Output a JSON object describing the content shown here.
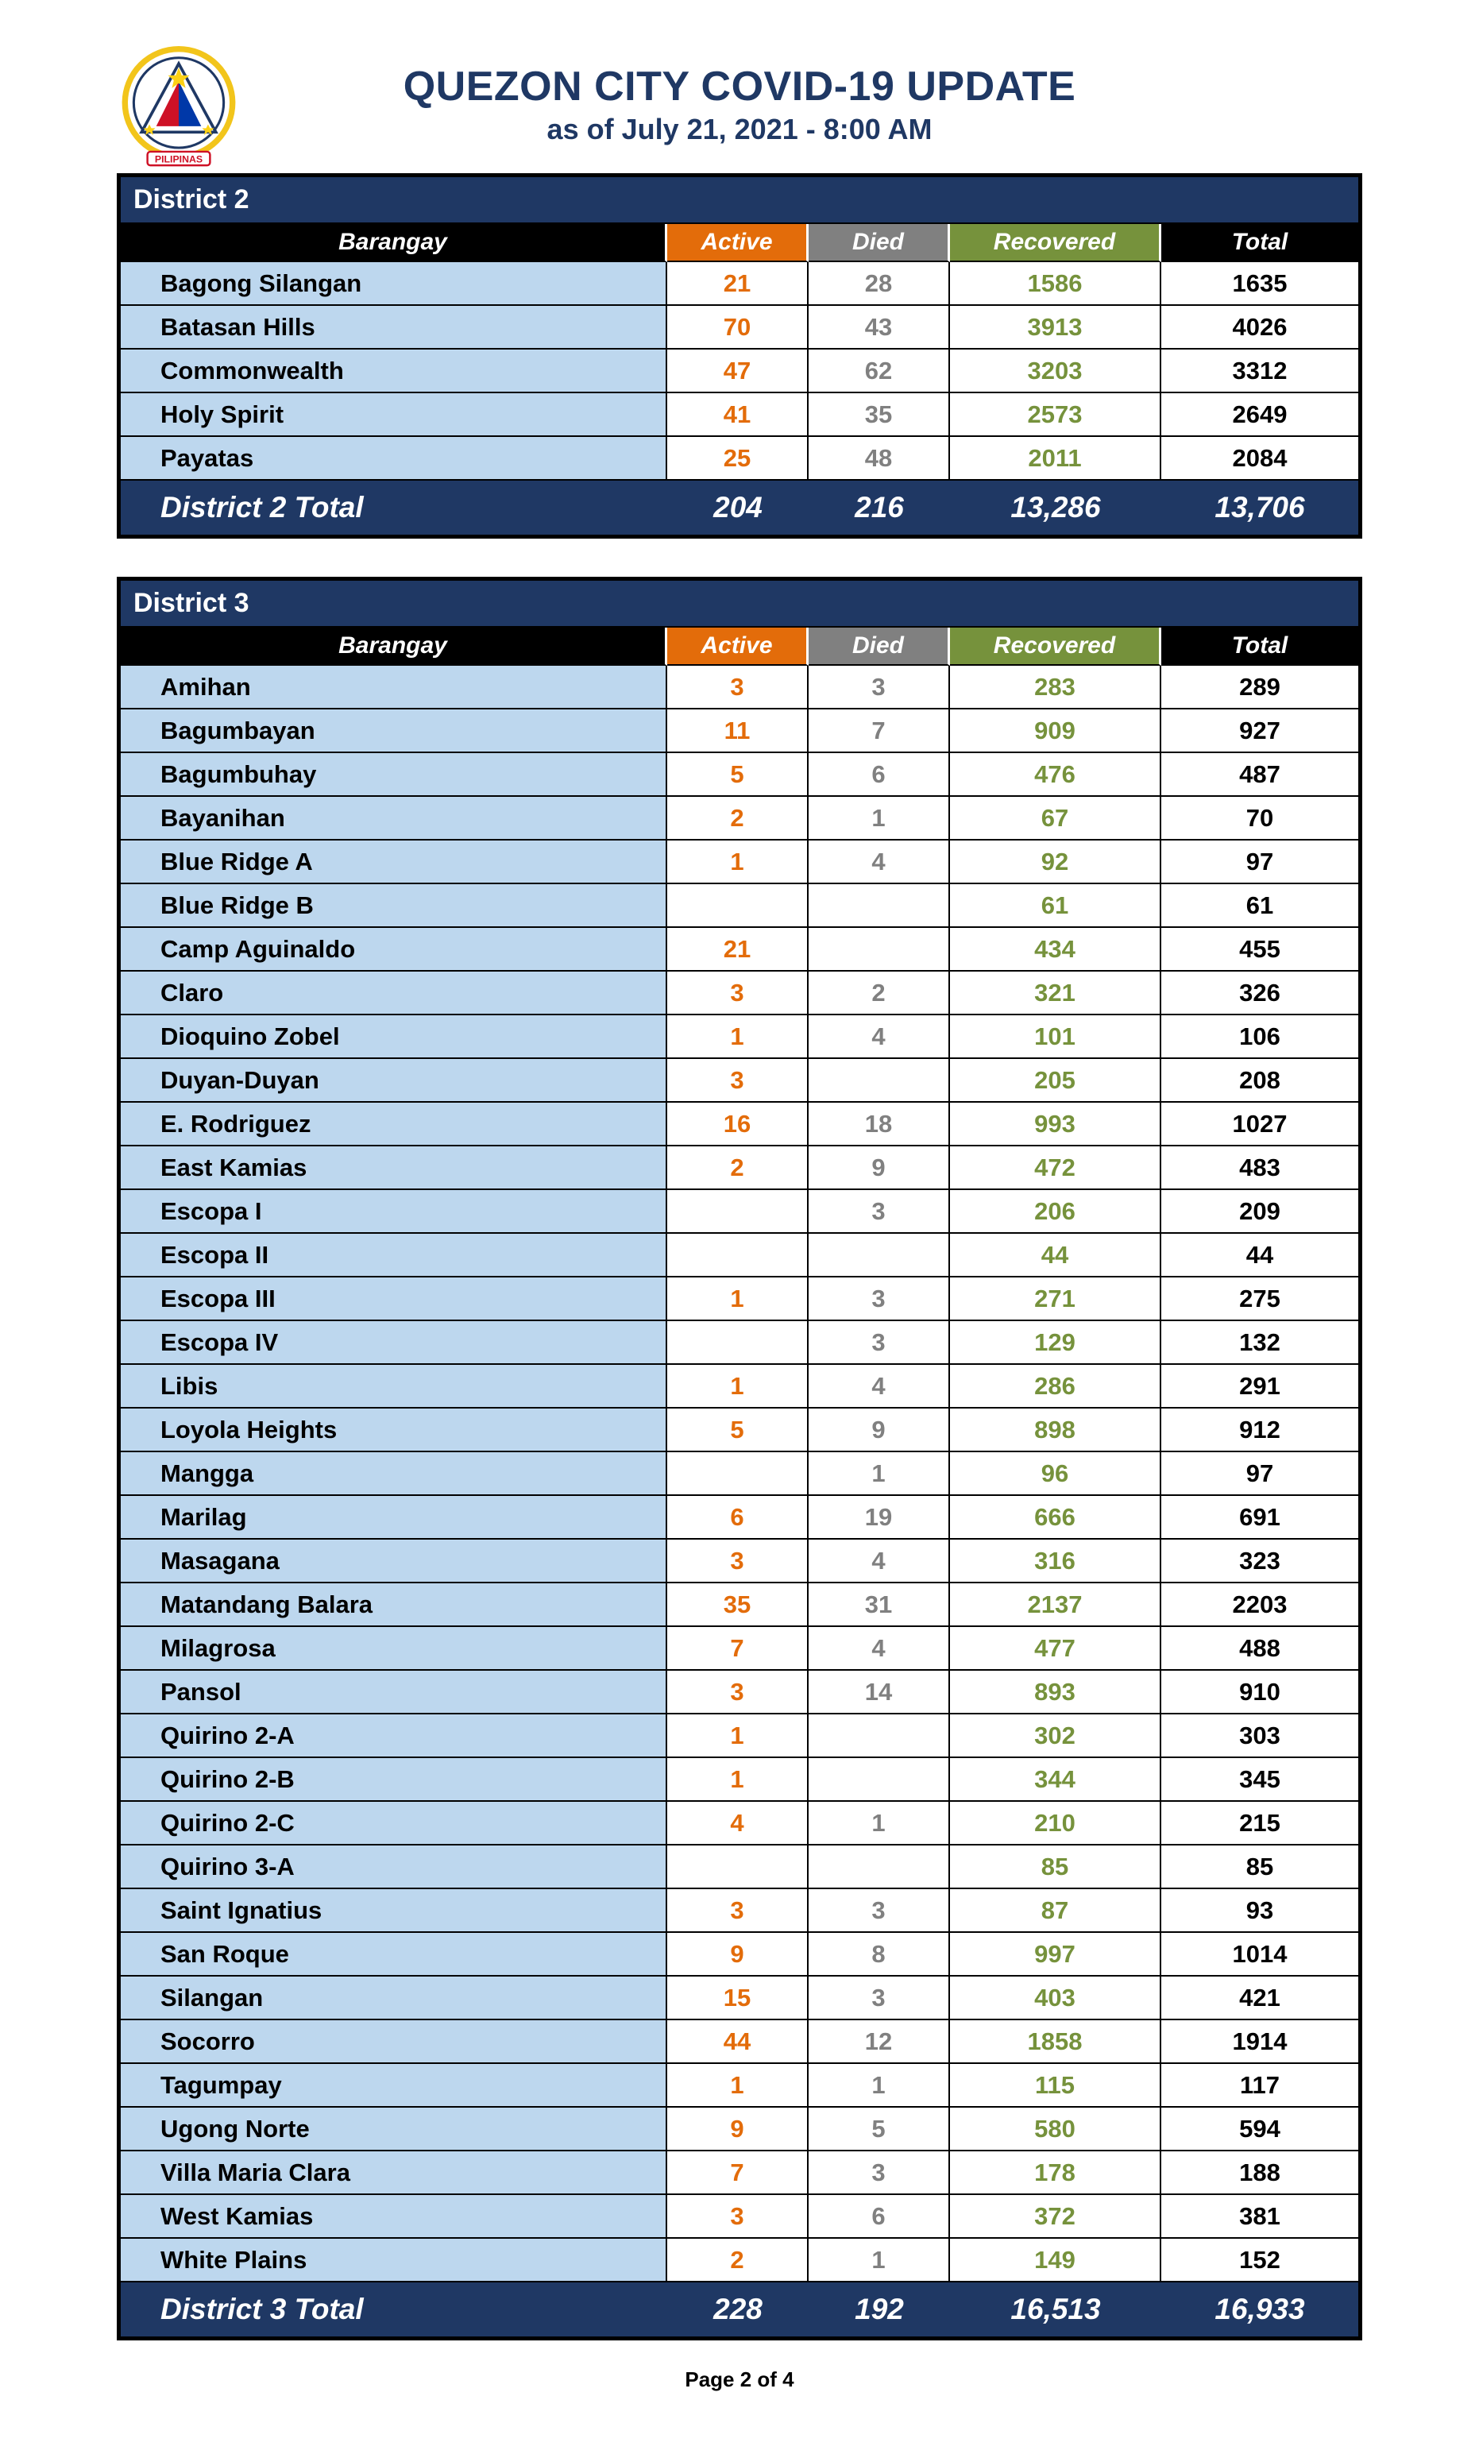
{
  "header": {
    "title": "QUEZON CITY COVID-19 UPDATE",
    "subtitle": "as of July 21, 2021 - 8:00 AM",
    "logo_icon": "quezon-city-seal",
    "logo_banner_text": "PILIPINAS"
  },
  "colors": {
    "navy": "#1F3864",
    "orange": "#E36C0A",
    "gray": "#808080",
    "green": "#76923C",
    "light_blue": "#BDD7EE",
    "border": "#000000"
  },
  "table": {
    "columns": [
      "Barangay",
      "Active",
      "Died",
      "Recovered",
      "Total"
    ],
    "column_keys": [
      "barangay",
      "active",
      "died",
      "recovered",
      "total"
    ]
  },
  "districts": [
    {
      "name": "District 2",
      "rows": [
        [
          "Bagong Silangan",
          "21",
          "28",
          "1586",
          "1635"
        ],
        [
          "Batasan Hills",
          "70",
          "43",
          "3913",
          "4026"
        ],
        [
          "Commonwealth",
          "47",
          "62",
          "3203",
          "3312"
        ],
        [
          "Holy Spirit",
          "41",
          "35",
          "2573",
          "2649"
        ],
        [
          "Payatas",
          "25",
          "48",
          "2011",
          "2084"
        ]
      ],
      "total": {
        "label": "District 2 Total",
        "active": "204",
        "died": "216",
        "recovered": "13,286",
        "total": "13,706"
      }
    },
    {
      "name": "District 3",
      "rows": [
        [
          "Amihan",
          "3",
          "3",
          "283",
          "289"
        ],
        [
          "Bagumbayan",
          "11",
          "7",
          "909",
          "927"
        ],
        [
          "Bagumbuhay",
          "5",
          "6",
          "476",
          "487"
        ],
        [
          "Bayanihan",
          "2",
          "1",
          "67",
          "70"
        ],
        [
          "Blue Ridge A",
          "1",
          "4",
          "92",
          "97"
        ],
        [
          "Blue Ridge B",
          "",
          "",
          "61",
          "61"
        ],
        [
          "Camp Aguinaldo",
          "21",
          "",
          "434",
          "455"
        ],
        [
          "Claro",
          "3",
          "2",
          "321",
          "326"
        ],
        [
          "Dioquino Zobel",
          "1",
          "4",
          "101",
          "106"
        ],
        [
          "Duyan-Duyan",
          "3",
          "",
          "205",
          "208"
        ],
        [
          "E. Rodriguez",
          "16",
          "18",
          "993",
          "1027"
        ],
        [
          "East Kamias",
          "2",
          "9",
          "472",
          "483"
        ],
        [
          "Escopa I",
          "",
          "3",
          "206",
          "209"
        ],
        [
          "Escopa II",
          "",
          "",
          "44",
          "44"
        ],
        [
          "Escopa III",
          "1",
          "3",
          "271",
          "275"
        ],
        [
          "Escopa IV",
          "",
          "3",
          "129",
          "132"
        ],
        [
          "Libis",
          "1",
          "4",
          "286",
          "291"
        ],
        [
          "Loyola Heights",
          "5",
          "9",
          "898",
          "912"
        ],
        [
          "Mangga",
          "",
          "1",
          "96",
          "97"
        ],
        [
          "Marilag",
          "6",
          "19",
          "666",
          "691"
        ],
        [
          "Masagana",
          "3",
          "4",
          "316",
          "323"
        ],
        [
          "Matandang Balara",
          "35",
          "31",
          "2137",
          "2203"
        ],
        [
          "Milagrosa",
          "7",
          "4",
          "477",
          "488"
        ],
        [
          "Pansol",
          "3",
          "14",
          "893",
          "910"
        ],
        [
          "Quirino 2-A",
          "1",
          "",
          "302",
          "303"
        ],
        [
          "Quirino 2-B",
          "1",
          "",
          "344",
          "345"
        ],
        [
          "Quirino 2-C",
          "4",
          "1",
          "210",
          "215"
        ],
        [
          "Quirino 3-A",
          "",
          "",
          "85",
          "85"
        ],
        [
          "Saint Ignatius",
          "3",
          "3",
          "87",
          "93"
        ],
        [
          "San Roque",
          "9",
          "8",
          "997",
          "1014"
        ],
        [
          "Silangan",
          "15",
          "3",
          "403",
          "421"
        ],
        [
          "Socorro",
          "44",
          "12",
          "1858",
          "1914"
        ],
        [
          "Tagumpay",
          "1",
          "1",
          "115",
          "117"
        ],
        [
          "Ugong Norte",
          "9",
          "5",
          "580",
          "594"
        ],
        [
          "Villa Maria Clara",
          "7",
          "3",
          "178",
          "188"
        ],
        [
          "West Kamias",
          "3",
          "6",
          "372",
          "381"
        ],
        [
          "White Plains",
          "2",
          "1",
          "149",
          "152"
        ]
      ],
      "total": {
        "label": "District 3 Total",
        "active": "228",
        "died": "192",
        "recovered": "16,513",
        "total": "16,933"
      }
    }
  ],
  "footer": {
    "page_label": "Page 2 of 4"
  }
}
